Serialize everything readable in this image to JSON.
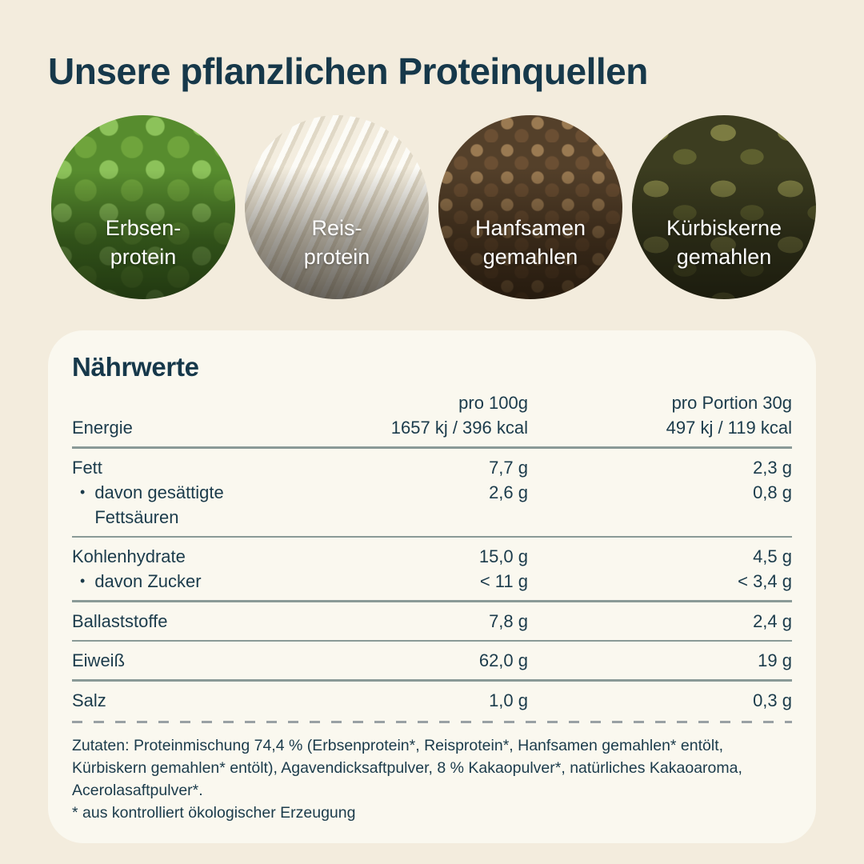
{
  "colors": {
    "background": "#F3ECDD",
    "card": "#FAF8EF",
    "text": "#16384A",
    "divider": "#8A9A97",
    "dashed_divider": "#99A1A4",
    "circle_label": "#FFFFFF"
  },
  "header": {
    "title": "Unsere pflanzlichen Proteinquellen"
  },
  "sources": [
    {
      "line1": "Erbsen-",
      "line2": "protein"
    },
    {
      "line1": "Reis-",
      "line2": "protein"
    },
    {
      "line1": "Hanfsamen",
      "line2": "gemahlen"
    },
    {
      "line1": "Kürbiskerne",
      "line2": "gemahlen"
    }
  ],
  "nutrition": {
    "heading": "Nährwerte",
    "col_per100": "pro 100g",
    "col_portion": "pro Portion 30g",
    "bullet": "•",
    "rows": [
      {
        "label": "Energie",
        "per100": "1657 kj / 396 kcal",
        "portion": "497 kj / 119 kcal"
      },
      {
        "label": "Fett",
        "per100": "7,7 g",
        "portion": "2,3 g"
      },
      {
        "label": "davon gesättigte",
        "label2": "Fettsäuren",
        "per100": "2,6 g",
        "portion": "0,8 g"
      },
      {
        "label": "Kohlenhydrate",
        "per100": "15,0 g",
        "portion": "4,5 g"
      },
      {
        "label": "davon Zucker",
        "per100": "< 11 g",
        "portion": "< 3,4 g"
      },
      {
        "label": "Ballaststoffe",
        "per100": "7,8 g",
        "portion": "2,4 g"
      },
      {
        "label": "Eiweiß",
        "per100": "62,0 g",
        "portion": "19 g"
      },
      {
        "label": "Salz",
        "per100": "1,0 g",
        "portion": "0,3 g"
      }
    ]
  },
  "footer": {
    "ingredients": "Zutaten: Proteinmischung 74,4 % (Erbsenprotein*, Reisprotein*, Hanfsamen gemahlen* entölt, Kürbiskern gemahlen* entölt), Agavendicksaftpulver, 8 % Kakaopulver*, natürliches Kakaoaroma, Acerolasaftpulver*.",
    "note": "* aus kontrolliert ökologischer Erzeugung"
  }
}
